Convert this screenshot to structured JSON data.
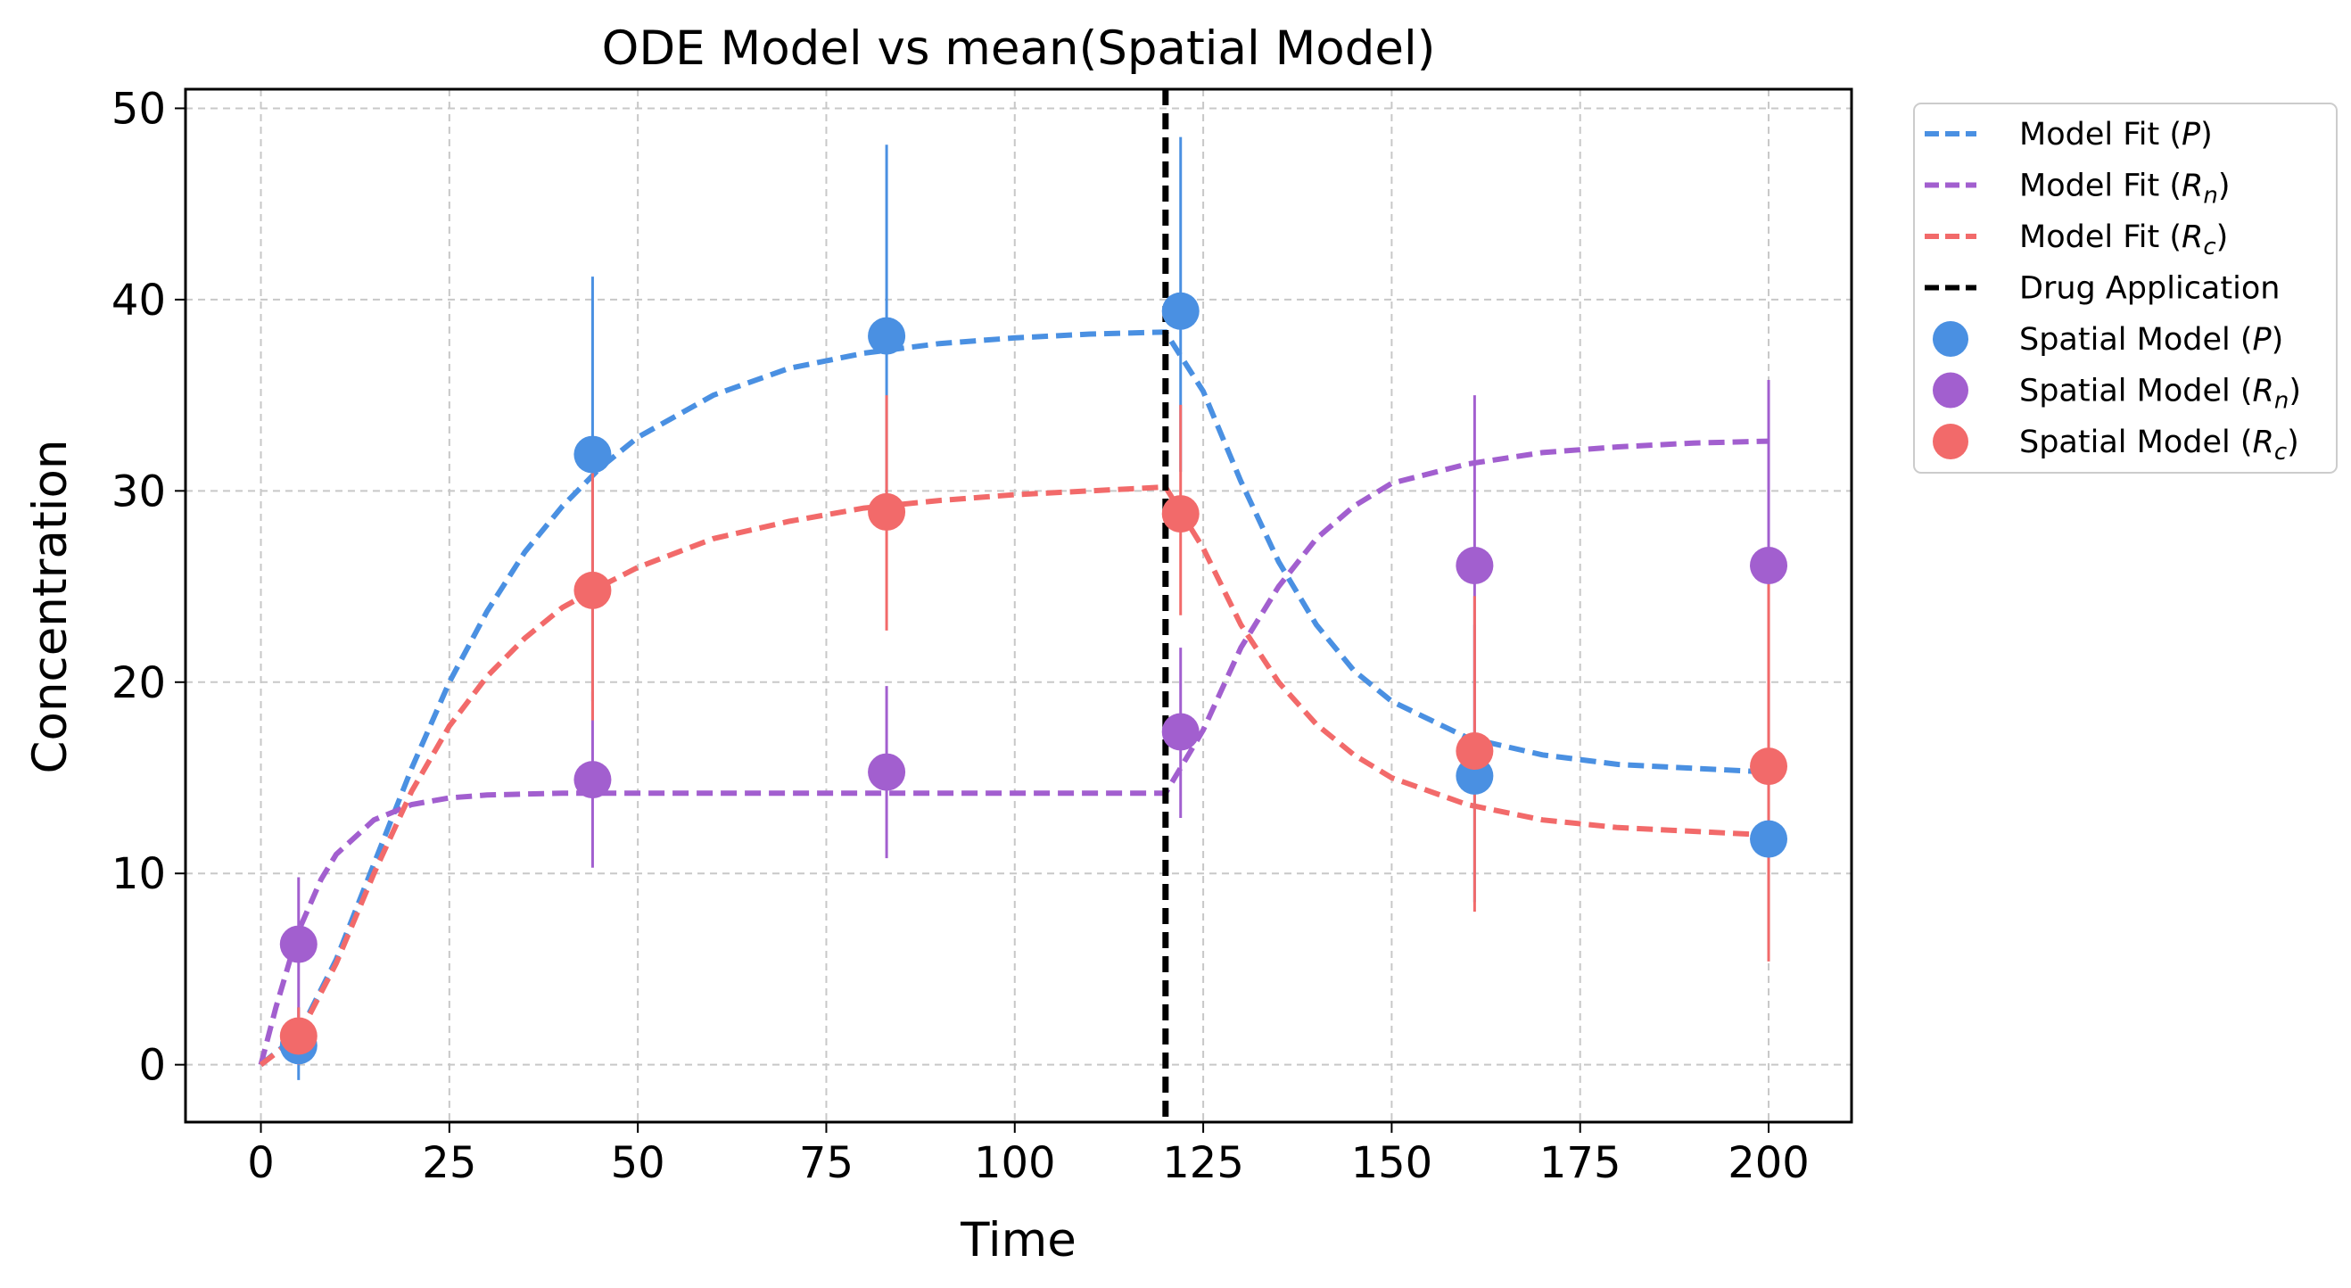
{
  "chart_data": {
    "type": "line",
    "title": "ODE Model vs mean(Spatial Model)",
    "xlabel": "Time",
    "ylabel": "Concentration",
    "xlim": [
      -10,
      211
    ],
    "ylim": [
      -3,
      51
    ],
    "xticks": [
      0,
      25,
      50,
      75,
      100,
      125,
      150,
      175,
      200
    ],
    "yticks": [
      0,
      10,
      20,
      30,
      40,
      50
    ],
    "grid": true,
    "legend_position": "outside-top-right",
    "drug_application_time": 120,
    "colors": {
      "P": "#4a90e2",
      "Rn": "#a25fcf",
      "Rc": "#f26a6a",
      "drug": "#000000"
    },
    "series": [
      {
        "name": "Model Fit (P)",
        "style": "dashed-line",
        "color_key": "P",
        "x": [
          0,
          5,
          10,
          15,
          20,
          25,
          30,
          35,
          40,
          45,
          50,
          60,
          70,
          80,
          90,
          100,
          110,
          120,
          125,
          130,
          135,
          140,
          145,
          150,
          160,
          170,
          180,
          190,
          200
        ],
        "y": [
          0,
          1.6,
          5.5,
          10.5,
          15.5,
          20.0,
          23.7,
          26.8,
          29.2,
          31.2,
          32.8,
          35.0,
          36.4,
          37.2,
          37.7,
          38.0,
          38.2,
          38.3,
          35.2,
          30.5,
          26.3,
          23.0,
          20.6,
          19.0,
          17.1,
          16.2,
          15.7,
          15.5,
          15.3
        ]
      },
      {
        "name": "Model Fit (Rn)",
        "style": "dashed-line",
        "color_key": "Rn",
        "x": [
          0,
          2,
          5,
          8,
          10,
          15,
          20,
          25,
          30,
          40,
          50,
          75,
          100,
          120,
          125,
          130,
          135,
          140,
          145,
          150,
          160,
          170,
          180,
          190,
          200
        ],
        "y": [
          0,
          3.0,
          7.0,
          9.7,
          11.0,
          12.8,
          13.6,
          13.95,
          14.1,
          14.2,
          14.2,
          14.2,
          14.2,
          14.2,
          17.5,
          21.8,
          25.0,
          27.5,
          29.2,
          30.4,
          31.4,
          32.0,
          32.3,
          32.5,
          32.6
        ]
      },
      {
        "name": "Model Fit (Rc)",
        "style": "dashed-line",
        "color_key": "Rc",
        "x": [
          0,
          5,
          10,
          15,
          20,
          25,
          30,
          35,
          40,
          45,
          50,
          60,
          70,
          80,
          90,
          100,
          110,
          120,
          125,
          130,
          135,
          140,
          145,
          150,
          160,
          170,
          180,
          190,
          200
        ],
        "y": [
          0,
          1.5,
          5.3,
          10.0,
          14.3,
          17.7,
          20.3,
          22.3,
          23.9,
          25.0,
          26.0,
          27.5,
          28.4,
          29.1,
          29.5,
          29.8,
          30.0,
          30.2,
          27.0,
          23.0,
          20.0,
          17.8,
          16.2,
          15.0,
          13.6,
          12.8,
          12.4,
          12.2,
          12.0
        ]
      },
      {
        "name": "Spatial Model (P)",
        "style": "points-with-errorbars",
        "color_key": "P",
        "x": [
          5,
          44,
          83,
          122,
          161,
          200
        ],
        "y": [
          1.0,
          31.9,
          38.1,
          39.4,
          15.1,
          11.8
        ],
        "yerr_low": [
          -0.8,
          19.0,
          29.0,
          31.0,
          8.5,
          6.0
        ],
        "yerr_high": [
          3.0,
          41.2,
          48.1,
          48.5,
          23.0,
          20.0
        ]
      },
      {
        "name": "Spatial Model (Rn)",
        "style": "points-with-errorbars",
        "color_key": "Rn",
        "x": [
          5,
          44,
          83,
          122,
          161,
          200
        ],
        "y": [
          6.3,
          14.9,
          15.3,
          17.4,
          26.1,
          26.1
        ],
        "yerr_low": [
          2.5,
          10.3,
          10.8,
          12.9,
          17.0,
          16.5
        ],
        "yerr_high": [
          9.8,
          19.5,
          19.8,
          21.8,
          35.0,
          35.8
        ]
      },
      {
        "name": "Spatial Model (Rc)",
        "style": "points-with-errorbars",
        "color_key": "Rc",
        "x": [
          5,
          44,
          83,
          122,
          161,
          200
        ],
        "y": [
          1.5,
          24.8,
          28.9,
          28.8,
          16.4,
          15.6
        ],
        "yerr_low": [
          0.0,
          18.0,
          22.7,
          23.5,
          8.0,
          5.4
        ],
        "yerr_high": [
          3.0,
          31.0,
          35.0,
          34.5,
          24.5,
          25.7
        ]
      }
    ],
    "legend": [
      {
        "kind": "dash",
        "color_key": "P",
        "text": "Model Fit (",
        "sym": "P",
        "sub": "",
        "close": ")"
      },
      {
        "kind": "dash",
        "color_key": "Rn",
        "text": "Model Fit (",
        "sym": "R",
        "sub": "n",
        "close": ")"
      },
      {
        "kind": "dash",
        "color_key": "Rc",
        "text": "Model Fit (",
        "sym": "R",
        "sub": "c",
        "close": ")"
      },
      {
        "kind": "dash",
        "color_key": "drug",
        "text": "Drug Application",
        "sym": "",
        "sub": "",
        "close": ""
      },
      {
        "kind": "dot",
        "color_key": "P",
        "text": "Spatial Model (",
        "sym": "P",
        "sub": "",
        "close": ")"
      },
      {
        "kind": "dot",
        "color_key": "Rn",
        "text": "Spatial Model (",
        "sym": "R",
        "sub": "n",
        "close": ")"
      },
      {
        "kind": "dot",
        "color_key": "Rc",
        "text": "Spatial Model (",
        "sym": "R",
        "sub": "c",
        "close": ")"
      }
    ]
  }
}
